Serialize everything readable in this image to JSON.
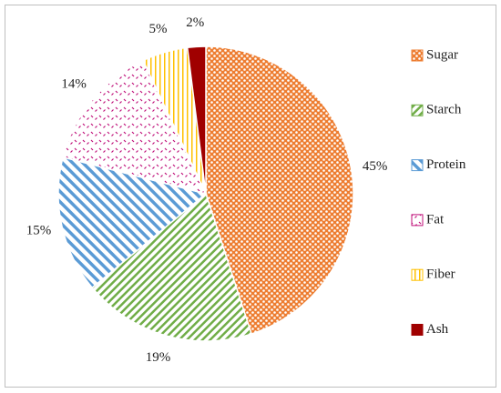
{
  "chart_data": {
    "type": "pie",
    "categories": [
      "Sugar",
      "Starch",
      "Protein",
      "Fat",
      "Fiber",
      "Ash"
    ],
    "values": [
      45,
      19,
      15,
      14,
      5,
      2
    ],
    "value_labels": [
      "45%",
      "19%",
      "15%",
      "14%",
      "5%",
      "2%"
    ],
    "colors": [
      "#ed7d31",
      "#70ad47",
      "#5b9bd5",
      "#c0107a",
      "#ffc000",
      "#a00000"
    ],
    "legend": "right"
  }
}
